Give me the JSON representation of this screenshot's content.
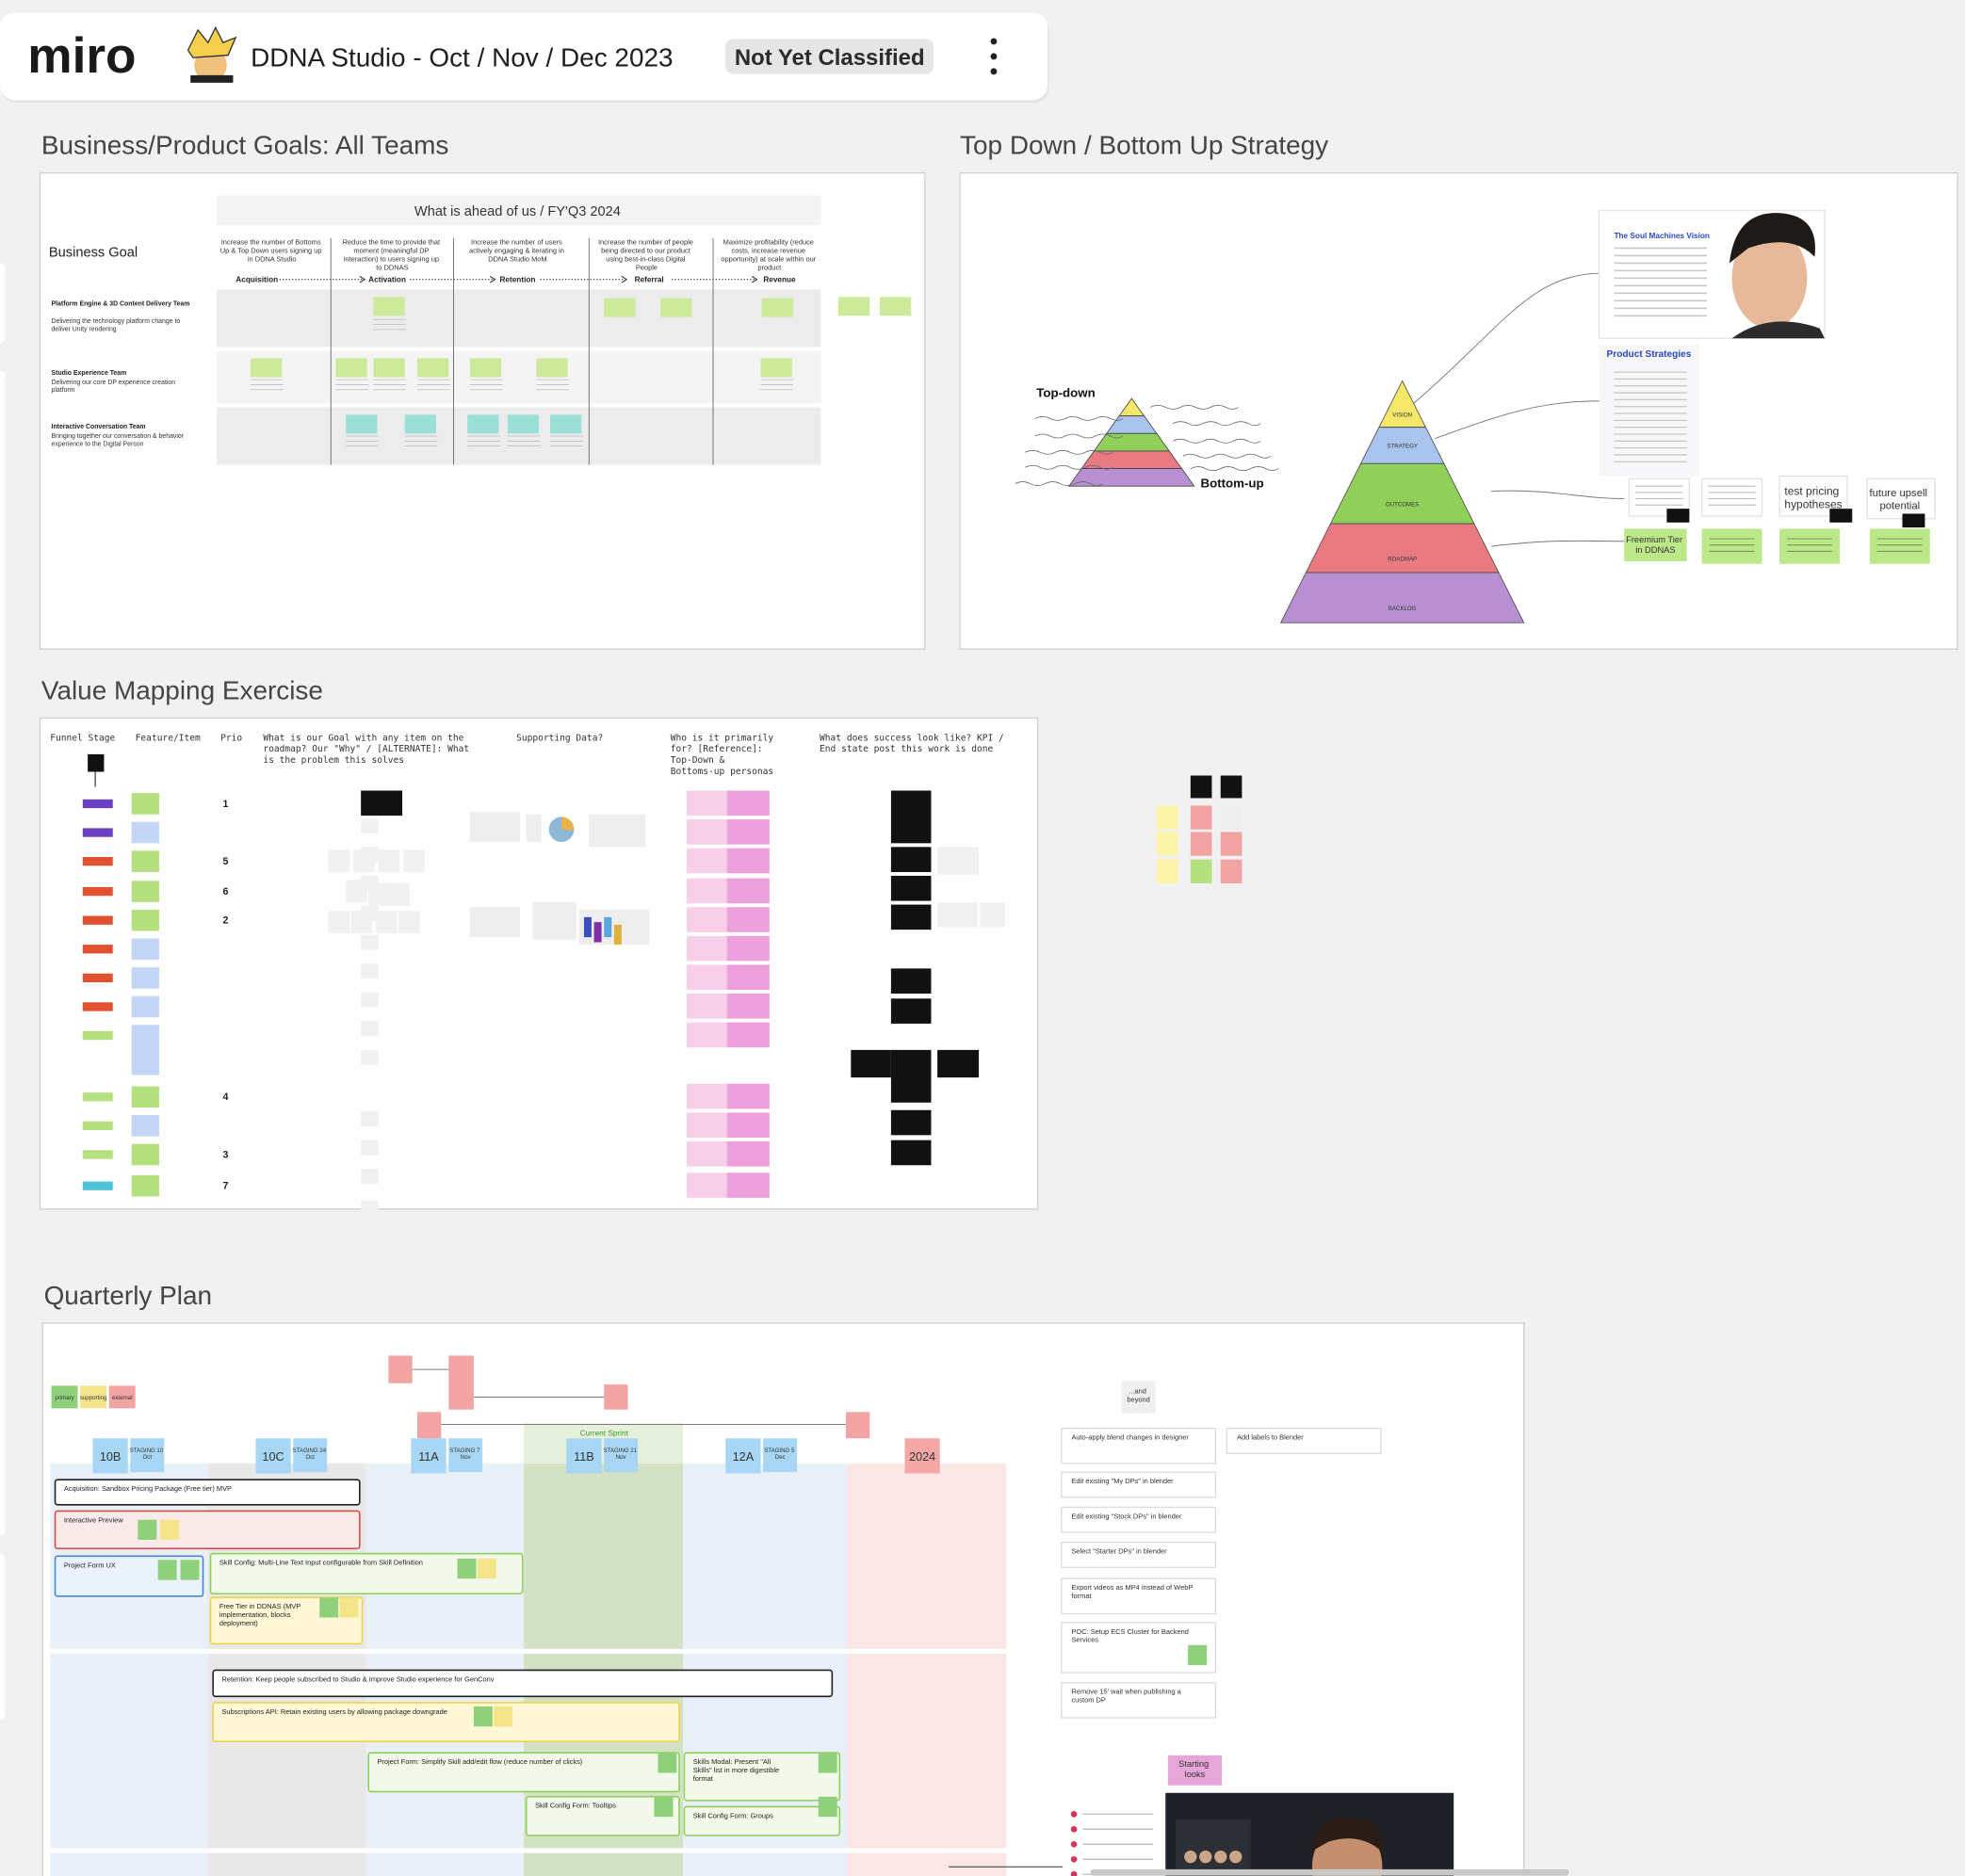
{
  "header": {
    "logo": "miro",
    "board_title": "DDNA Studio - Oct / Nov / Dec 2023",
    "classification": "Not Yet Classified"
  },
  "goals": {
    "title": "Business/Product Goals: All Teams",
    "heading": "What is ahead of us / FY'Q3 2024",
    "row_label": "Business Goal",
    "goals": [
      "Increase the number of Bottoms Up & Top Down users signing up in DDNA Studio",
      "Reduce the time to provide that moment (meaningful DP interaction) to users signing up to DDNAS",
      "Increase the number of users actively engaging & iterating in DDNA Studio MoM",
      "Increase the number of people being directed to our product using best-in-class Digital People",
      "Maximize profitability (reduce costs, increase revenue opportunity) at scale within our product"
    ],
    "stages": [
      "Acquisition",
      "Activation",
      "Retention",
      "Referral",
      "Revenue"
    ],
    "teams": [
      {
        "name": "Platform Engine & 3D Content Delivery Team",
        "desc": "Delivering the technology platform change to deliver Unity rendering"
      },
      {
        "name": "Studio Experience Team",
        "desc": "Delivering our core DP experience creation platform"
      },
      {
        "name": "Interactive Conversation Team",
        "desc": "Bringing together our conversation & behavior experience to the Digital Person"
      }
    ]
  },
  "strategy": {
    "title": "Top Down / Bottom Up Strategy",
    "top_down": "Top-down",
    "bottom_up": "Bottom-up",
    "levels": [
      "VISION",
      "STRATEGY",
      "OUTCOMES",
      "ROADMAP",
      "BACKLOG"
    ],
    "vision_card": "The Soul Machines Vision",
    "strategies_card": "Product Strategies",
    "notes": [
      "test pricing hypotheses",
      "future upsell potential"
    ],
    "freemium": "Freemium Tier in DDNAS"
  },
  "value_mapping": {
    "title": "Value Mapping Exercise",
    "columns": [
      "Funnel Stage",
      "Feature/Item",
      "Prio",
      "What is our Goal with any item on the roadmap? Our \"Why\" / [ALTERNATE]: What is the problem this solves",
      "Supporting Data?",
      "Who is it primarily for? [Reference]: Top-Down & Bottoms-up personas",
      "What does success look like? KPI / End state post this work is done"
    ],
    "prios": [
      1,
      null,
      5,
      6,
      2,
      null,
      null,
      null,
      null,
      4,
      null,
      3,
      7
    ]
  },
  "quarterly_plan": {
    "title": "Quarterly Plan",
    "legend": [
      "primary",
      "supporting",
      "external"
    ],
    "current_sprint": "Current Sprint",
    "sprints": [
      {
        "name": "10B",
        "staging": "STAGING 10 Oct"
      },
      {
        "name": "10C",
        "staging": "STAGING 24 Oct"
      },
      {
        "name": "11A",
        "staging": "STAGING 7 Nov"
      },
      {
        "name": "11B",
        "staging": "STAGING 21 Nov"
      },
      {
        "name": "12A",
        "staging": "STAGING 5 Dec"
      },
      {
        "name": "2024"
      }
    ],
    "items": [
      "Acquisition: Sandbox Pricing Package (Free tier) MVP",
      "Interactive Preview",
      "Project Form UX",
      "Skill Config: Multi-Line Text Input configurable from Skill Definition",
      "Free Tier in DDNAS (MVP implementation, blocks deployment)",
      "Retention: Keep people subscribed to Studio & Improve Studio experience for GenConv",
      "Subscriptions API: Retain existing users by allowing package downgrade",
      "Project Form: Simplify Skill add/edit flow (reduce number of clicks)",
      "Skills Modal: Present \"All Skills\" list in more digestible format",
      "Skill Config Form: Tooltips",
      "Skill Config Form: Groups"
    ],
    "and_beyond": "...and beyond",
    "backlog": [
      "Auto-apply blend changes in designer",
      "Edit existing \"My DPs\" in blender",
      "Edit existing \"Stock DPs\" in blender",
      "Select \"Starter DPs\" in blender",
      "Export videos as MP4 instead of WebP format",
      "POC: Setup ECS Cluster for Backend Services",
      "Remove 15' wait when publishing a custom DP",
      "Add labels to Blender"
    ],
    "starting_looks": "Starting looks"
  }
}
